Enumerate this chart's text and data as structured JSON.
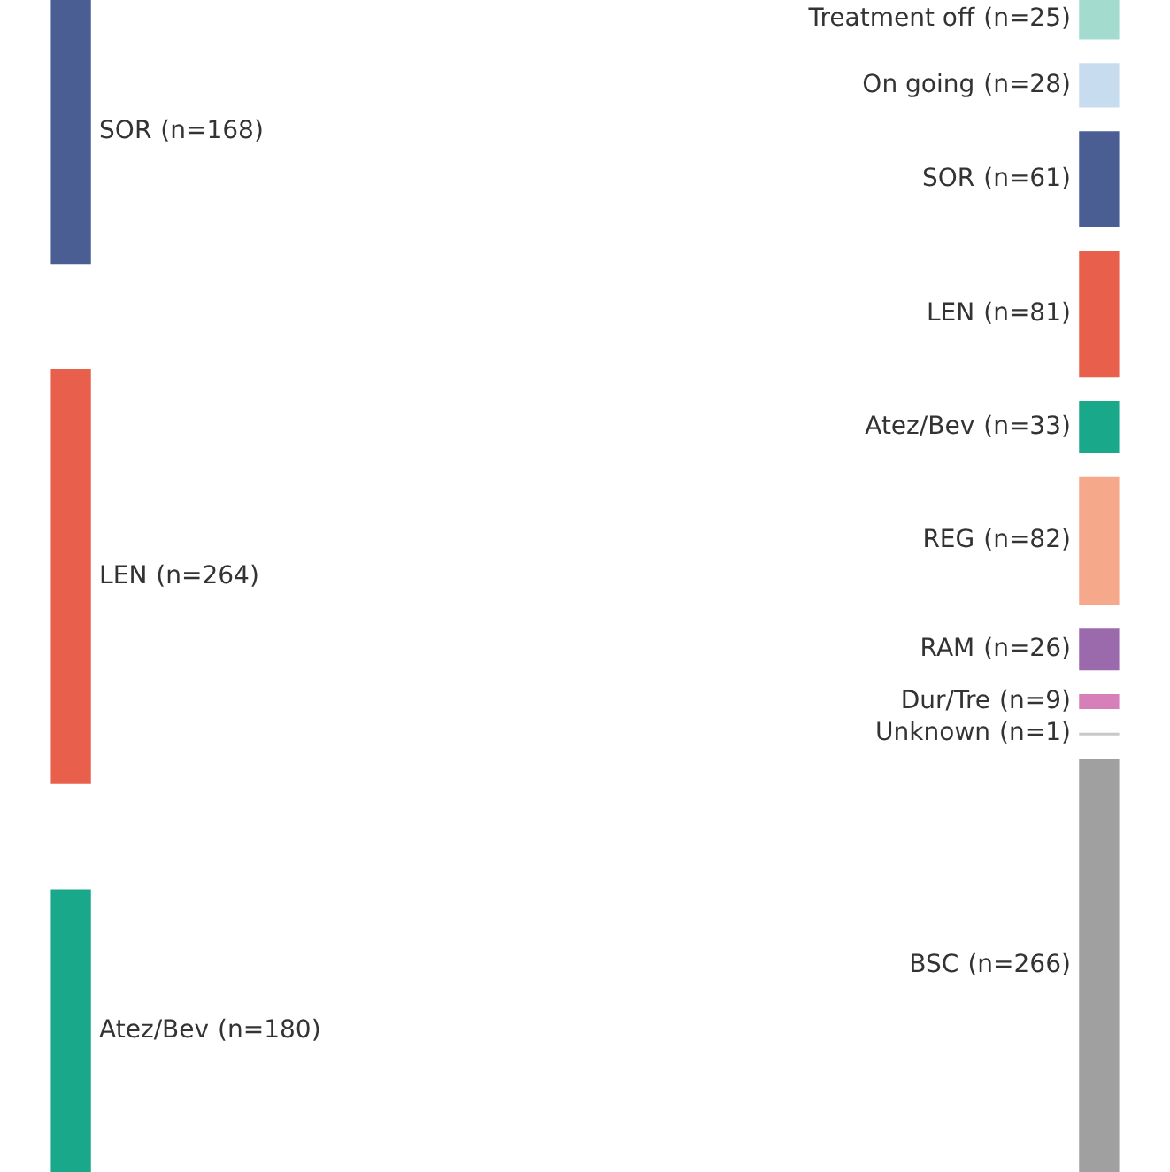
{
  "chart_data": {
    "type": "other",
    "categories": [
      "SOR",
      "LEN",
      "Atez/Bev",
      "Treatment off",
      "On going",
      "SOR",
      "LEN",
      "Atez/Bev",
      "REG",
      "RAM",
      "Dur/Tre",
      "Unknown",
      "BSC"
    ],
    "series": [
      {
        "values": [
          168,
          264,
          180,
          null,
          null,
          null,
          null,
          null,
          null,
          null,
          null,
          null,
          null
        ],
        "value_labels": [
          "(n=168)",
          "(n=264)",
          "(n=180)",
          null,
          null,
          null,
          null,
          null,
          null,
          null,
          null,
          null,
          null
        ]
      },
      {
        "values": [
          null,
          null,
          null,
          25,
          28,
          61,
          81,
          33,
          82,
          26,
          9,
          1,
          266
        ],
        "value_labels": [
          null,
          null,
          null,
          "(n=25)",
          "(n=28)",
          "(n=61)",
          "(n=81)",
          "(n=33)",
          "(n=82)",
          "(n=26)",
          "(n=9)",
          "(n=1)",
          "(n=266)"
        ]
      }
    ],
    "colors": [
      "#4a5e94",
      "#e8604c",
      "#1aa88a",
      "#a3dccf",
      "#c8dcf0",
      "#4a5e94",
      "#e8604c",
      "#1aa88a",
      "#f5a88a",
      "#9b6aad",
      "#d77fb8",
      "#c8c8c8",
      "#a0a0a0"
    ]
  }
}
